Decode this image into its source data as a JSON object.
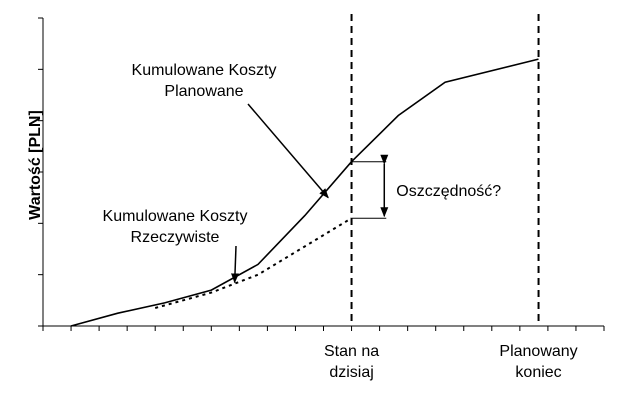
{
  "chart_data": {
    "type": "line",
    "xlabel": "",
    "ylabel": "Wartość [PLN]",
    "xlim": [
      0,
      12
    ],
    "ylim": [
      0,
      6
    ],
    "grid": false,
    "show_tick_values": false,
    "x_ticks": [
      0,
      0.6,
      1.2,
      1.8,
      2.4,
      3.0,
      3.6,
      4.2,
      4.8,
      5.4,
      6.0,
      6.6,
      7.2,
      7.8,
      8.4,
      9.0,
      9.6,
      10.2,
      10.8,
      11.4,
      12.0
    ],
    "y_ticks": [
      0,
      1,
      2,
      3,
      4,
      5,
      6
    ],
    "series": [
      {
        "name": "Kumulowane Koszty Planowane",
        "style": "solid",
        "points": [
          [
            0.6,
            0.0
          ],
          [
            1.6,
            0.25
          ],
          [
            2.6,
            0.45
          ],
          [
            3.6,
            0.7
          ],
          [
            4.6,
            1.2
          ],
          [
            5.6,
            2.15
          ],
          [
            6.6,
            3.2
          ],
          [
            7.6,
            4.1
          ],
          [
            8.6,
            4.75
          ],
          [
            10.6,
            5.2
          ]
        ]
      },
      {
        "name": "Kumulowane Koszty Rzeczywiste",
        "style": "dotted",
        "points": [
          [
            2.4,
            0.35
          ],
          [
            3.6,
            0.65
          ],
          [
            4.6,
            1.0
          ],
          [
            6.6,
            2.1
          ]
        ]
      }
    ],
    "vlines": [
      {
        "x": 6.6,
        "style": "dashed",
        "label_lines": [
          "Stan na",
          "dzisiaj"
        ]
      },
      {
        "x": 10.6,
        "style": "dashed",
        "label_lines": [
          "Planowany",
          "koniec"
        ]
      }
    ],
    "gap_marker": {
      "x": 7.3,
      "y_from": 2.1,
      "y_to": 3.2,
      "label": "Oszczędność?"
    },
    "annotations": [
      {
        "lines": [
          "Kumulowane Koszty",
          "Planowane"
        ],
        "points_to": [
          6.1,
          2.5
        ]
      },
      {
        "lines": [
          "Kumulowane Koszty",
          "Rzeczywiste"
        ],
        "points_to": [
          4.1,
          0.85
        ]
      }
    ]
  }
}
